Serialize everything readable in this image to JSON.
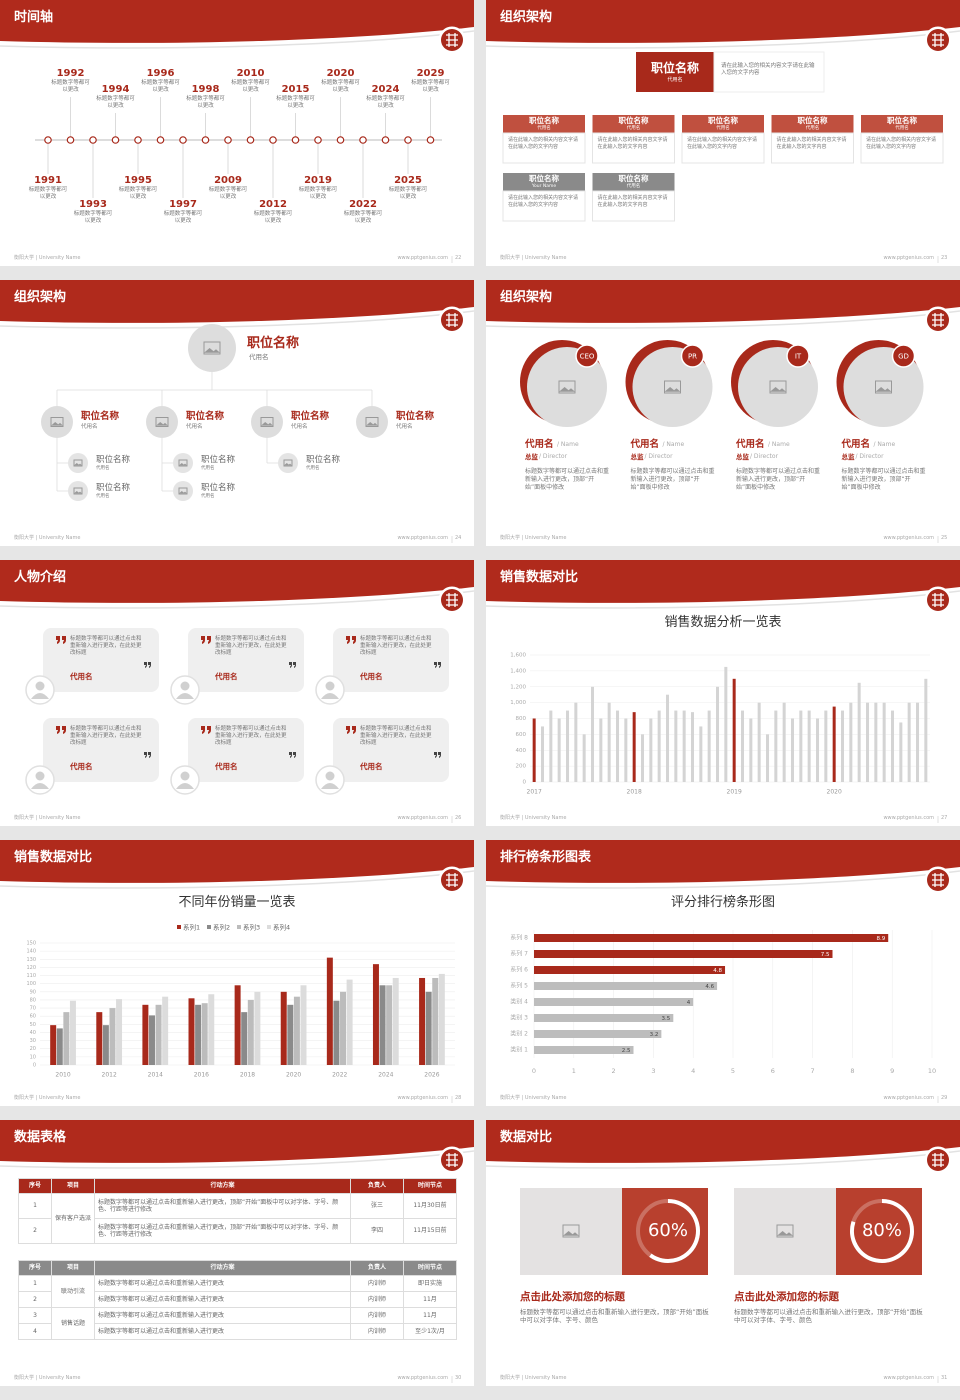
{
  "footer": "衡阳大学 | University Name",
  "url": "www.pptgenius.com",
  "slides": [
    {
      "layout": "timeline",
      "title": "时间轴",
      "page": "22",
      "events": [
        {
          "year": "1991",
          "text": "标题数字等都可以更改"
        },
        {
          "year": "1992",
          "text": "标题数字等都可以更改"
        },
        {
          "year": "1993",
          "text": "标题数字等都可以更改"
        },
        {
          "year": "1994",
          "text": "标题数字等都可以更改"
        },
        {
          "year": "1995",
          "text": "标题数字等都可以更改"
        },
        {
          "year": "1996",
          "text": "标题数字等都可以更改"
        },
        {
          "year": "1997",
          "text": "标题数字等都可以更改"
        },
        {
          "year": "1998",
          "text": "标题数字等都可以更改"
        },
        {
          "year": "2009",
          "text": "标题数字等都可以更改"
        },
        {
          "year": "2010",
          "text": "标题数字等都可以更改"
        },
        {
          "year": "2012",
          "text": "标题数字等都可以更改"
        },
        {
          "year": "2015",
          "text": "标题数字等都可以更改"
        },
        {
          "year": "2019",
          "text": "标题数字等都可以更改"
        },
        {
          "year": "2020",
          "text": "标题数字等都可以更改"
        },
        {
          "year": "2022",
          "text": "标题数字等都可以更改"
        },
        {
          "year": "2024",
          "text": "标题数字等都可以更改"
        },
        {
          "year": "2025",
          "text": "标题数字等都可以更改"
        },
        {
          "year": "2029",
          "text": "标题数字等都可以更改"
        }
      ]
    },
    {
      "layout": "org",
      "title": "组织架构",
      "page": "23",
      "top": {
        "title": "职位名称",
        "sub": "代用名",
        "desc": "请在此输入您的相关内容文字请在此输入您的文字内容"
      },
      "units": [
        {
          "title": "职位名称",
          "sub": "代用名",
          "desc": "请在此输入您的相关内容文字请在此输入您的文字内容"
        },
        {
          "title": "职位名称",
          "sub": "代用名",
          "desc": "请在此输入您的相关内容文字请在此输入您的文字内容"
        },
        {
          "title": "职位名称",
          "sub": "代用名",
          "desc": "请在此输入您的相关内容文字请在此输入您的文字内容"
        },
        {
          "title": "职位名称",
          "sub": "代用名",
          "desc": "请在此输入您的相关内容文字请在此输入您的文字内容"
        },
        {
          "title": "职位名称",
          "sub": "代用名",
          "desc": "请在此输入您的相关内容文字请在此输入您的文字内容"
        }
      ],
      "others": [
        {
          "title": "职位名称",
          "sub": "Your Name",
          "desc": "请在此输入您的相关内容文字请在此输入您的文字内容"
        },
        {
          "title": "职位名称",
          "sub": "代用名",
          "desc": "请在此输入您的相关内容文字请在此输入您的文字内容"
        }
      ]
    },
    {
      "layout": "org-circles",
      "title": "组织架构",
      "page": "24",
      "top": {
        "title": "职位名称",
        "sub": "代用名"
      },
      "members": [
        {
          "title": "职位名称",
          "sub": "代用名",
          "children": [
            {
              "title": "职位名称",
              "sub": "代用名"
            },
            {
              "title": "职位名称",
              "sub": "代用名"
            }
          ]
        },
        {
          "title": "职位名称",
          "sub": "代用名",
          "children": [
            {
              "title": "职位名称",
              "sub": "代用名"
            },
            {
              "title": "职位名称",
              "sub": "代用名"
            }
          ]
        },
        {
          "title": "职位名称",
          "sub": "代用名",
          "children": [
            {
              "title": "职位名称",
              "sub": "代用名"
            }
          ]
        },
        {
          "title": "职位名称",
          "sub": "代用名",
          "children": []
        }
      ]
    },
    {
      "layout": "profiles",
      "title": "组织架构",
      "page": "25",
      "profiles": [
        {
          "badge": "CEO",
          "name": "代用名",
          "name_en": "/ Name",
          "role": "总监",
          "role_en": "/ Director",
          "desc": "标题数字等都可以通过点击和重新输入进行更改，顶部“开始”面板中修改"
        },
        {
          "badge": "PR",
          "name": "代用名",
          "name_en": "/ Name",
          "role": "总监",
          "role_en": "/ Director",
          "desc": "标题数字等都可以通过点击和重新输入进行更改，顶部“开始”面板中修改"
        },
        {
          "badge": "IT",
          "name": "代用名",
          "name_en": "/ Name",
          "role": "总监",
          "role_en": "/ Director",
          "desc": "标题数字等都可以通过点击和重新输入进行更改，顶部“开始”面板中修改"
        },
        {
          "badge": "GD",
          "name": "代用名",
          "name_en": "/ Name",
          "role": "总监",
          "role_en": "/ Director",
          "desc": "标题数字等都可以通过点击和重新输入进行更改，顶部“开始”面板中修改"
        }
      ]
    },
    {
      "layout": "testimonials",
      "title": "人物介绍",
      "page": "26",
      "cards": [
        {
          "text": "标题数字等都可以通过点击和重新输入进行更改，在此处更改标题",
          "name": "代用名"
        },
        {
          "text": "标题数字等都可以通过点击和重新输入进行更改，在此处更改标题",
          "name": "代用名"
        },
        {
          "text": "标题数字等都可以通过点击和重新输入进行更改，在此处更改标题",
          "name": "代用名"
        },
        {
          "text": "标题数字等都可以通过点击和重新输入进行更改，在此处更改标题",
          "name": "代用名"
        },
        {
          "text": "标题数字等都可以通过点击和重新输入进行更改，在此处更改标题",
          "name": "代用名"
        },
        {
          "text": "标题数字等都可以通过点击和重新输入进行更改，在此处更改标题",
          "name": "代用名"
        }
      ]
    },
    {
      "layout": "chart",
      "title": "销售数据对比",
      "page": "27",
      "chart": {
        "type": "bar",
        "title": "销售数据分析一览表",
        "color": "#d4d4d4",
        "highlight_color": "#a8291b",
        "categories": [
          "2017",
          null,
          null,
          null,
          null,
          null,
          null,
          null,
          null,
          null,
          null,
          null,
          "2018",
          null,
          null,
          null,
          null,
          null,
          null,
          null,
          null,
          null,
          null,
          null,
          "2019",
          null,
          null,
          null,
          null,
          null,
          null,
          null,
          null,
          null,
          null,
          null,
          "2020",
          null,
          null,
          null,
          null,
          null,
          null,
          null,
          null,
          null,
          null,
          null
        ],
        "values": [
          800,
          700,
          900,
          800,
          900,
          1000,
          600,
          1200,
          800,
          1000,
          900,
          800,
          880,
          600,
          800,
          900,
          1100,
          900,
          900,
          880,
          700,
          900,
          1200,
          1450,
          1300,
          900,
          800,
          1000,
          600,
          900,
          1000,
          800,
          900,
          900,
          800,
          900,
          950,
          900,
          1000,
          1250,
          1000,
          1000,
          1000,
          900,
          750,
          1000,
          1000,
          1300
        ],
        "ylim": [
          0,
          1600
        ],
        "yticks": [
          0,
          200,
          400,
          600,
          800,
          {
            "value": 1000,
            "label": "1,000"
          },
          {
            "value": 1200,
            "label": "1,200"
          },
          {
            "value": 1400,
            "label": "1,400"
          },
          {
            "value": 1600,
            "label": "1,600"
          }
        ],
        "grid": true
      }
    },
    {
      "layout": "chart",
      "title": "销售数据对比",
      "page": "28",
      "chart": {
        "type": "grouped-bar",
        "title": "不同年份销量一览表",
        "legend": "top",
        "categories": [
          "2010",
          "2012",
          "2014",
          "2016",
          "2018",
          "2020",
          "2022",
          "2024",
          "2026"
        ],
        "series": [
          {
            "name": "系列1",
            "color": "#a8291b",
            "values": [
              49,
              65,
              74,
              82,
              98,
              90,
              132,
              124,
              107
            ]
          },
          {
            "name": "系列2",
            "color": "#8a8a8a",
            "values": [
              45,
              49,
              61,
              74,
              65,
              74,
              79,
              98,
              90
            ]
          },
          {
            "name": "系列3",
            "color": "#bcbcbc",
            "values": [
              65,
              70,
              74,
              76,
              80,
              84,
              90,
              98,
              107
            ]
          },
          {
            "name": "系列4",
            "color": "#dcdcdc",
            "values": [
              79,
              81,
              84,
              87,
              90,
              98,
              105,
              107,
              112
            ]
          }
        ],
        "ylim": [
          0,
          150
        ],
        "yticks": [
          0,
          10,
          20,
          30,
          40,
          50,
          60,
          70,
          80,
          90,
          100,
          110,
          120,
          130,
          140,
          150
        ],
        "grid": true
      }
    },
    {
      "layout": "chart",
      "title": "排行榜条形图表",
      "page": "29",
      "chart": {
        "type": "hbar",
        "title": "评分排行榜条形图",
        "categories": [
          "系列 8",
          "系列 7",
          "系列 6",
          "系列 5",
          "类别 4",
          "类别 3",
          "类别 2",
          "类别 1"
        ],
        "values": [
          8.9,
          7.5,
          4.8,
          4.6,
          4,
          3.5,
          3.2,
          2.5
        ],
        "colors": [
          "#a8291b",
          "#a8291b",
          "#a8291b",
          "#bdbdbd",
          "#bdbdbd",
          "#bdbdbd",
          "#bdbdbd",
          "#bdbdbd"
        ],
        "xlim": [
          0,
          10
        ],
        "xticks": [
          0,
          1,
          2,
          3,
          4,
          5,
          6,
          7,
          8,
          9,
          10
        ],
        "grid": true
      }
    },
    {
      "layout": "tables",
      "title": "数据表格",
      "page": "30",
      "tables": [
        {
          "color": "#a8291b",
          "header": [
            "序号",
            "项目",
            "行动方案",
            "负责人",
            "时间节点"
          ],
          "groups": [
            {
              "project": "保有客户选派",
              "rows": [
                {
                  "no": "1",
                  "plan": "标题数字等都可以通过点击和重新输入进行更改，顶部“开始”面板中可以对字体、字号、颜色、行距等进行修改",
                  "owner": "张三",
                  "deadline": "11月30日前"
                },
                {
                  "no": "2",
                  "plan": "标题数字等都可以通过点击和重新输入进行更改，顶部“开始”面板中可以对字体、字号、颜色、行距等进行修改",
                  "owner": "李四",
                  "deadline": "11月15日前"
                }
              ]
            }
          ]
        },
        {
          "color": "#8a8a8a",
          "header": [
            "序号",
            "项目",
            "行动方案",
            "负责人",
            "时间节点"
          ],
          "groups": [
            {
              "project": "联动引流",
              "rows": [
                {
                  "no": "1",
                  "plan": "标题数字等都可以通过点击和重新输入进行更改",
                  "owner": "内训师",
                  "deadline": "即日实施"
                },
                {
                  "no": "2",
                  "plan": "标题数字等都可以通过点击和重新输入进行更改",
                  "owner": "内训师",
                  "deadline": "11月"
                }
              ]
            },
            {
              "project": "销售话题",
              "rows": [
                {
                  "no": "3",
                  "plan": "标题数字等都可以通过点击和重新输入进行更改",
                  "owner": "内训师",
                  "deadline": "11月"
                },
                {
                  "no": "4",
                  "plan": "标题数字等都可以通过点击和重新输入进行更改",
                  "owner": "内训师",
                  "deadline": "至少1次/月"
                }
              ]
            }
          ]
        }
      ]
    },
    {
      "layout": "comparison",
      "title": "数据对比",
      "page": "31",
      "items": [
        {
          "value": 60,
          "value_label": "60%",
          "title": "点击此处添加您的标题",
          "text": "标题数字等都可以通过点击和重新输入进行更改，顶部“开始”面板中可以对字体、字号、颜色"
        },
        {
          "value": 80,
          "value_label": "80%",
          "title": "点击此处添加您的标题",
          "text": "标题数字等都可以通过点击和重新输入进行更改，顶部“开始”面板中可以对字体、字号、颜色"
        }
      ]
    }
  ]
}
